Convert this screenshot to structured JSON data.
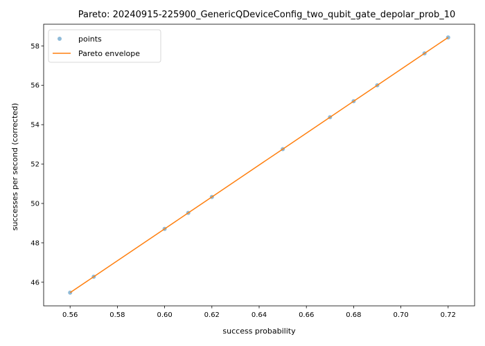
{
  "chart_data": {
    "type": "scatter",
    "title": "Pareto: 20240915-225900_GenericQDeviceConfig_two_qubit_gate_depolar_prob_10",
    "xlabel": "success probability",
    "ylabel": "successes per second (corrected)",
    "xlim": [
      0.5488,
      0.7312
    ],
    "ylim": [
      44.8,
      59.1
    ],
    "xticks": [
      0.56,
      0.58,
      0.6,
      0.62,
      0.64,
      0.66,
      0.68,
      0.7,
      0.72
    ],
    "xtick_labels": [
      "0.56",
      "0.58",
      "0.60",
      "0.62",
      "0.64",
      "0.66",
      "0.68",
      "0.70",
      "0.72"
    ],
    "yticks": [
      46,
      48,
      50,
      52,
      54,
      56,
      58
    ],
    "ytick_labels": [
      "46",
      "48",
      "50",
      "52",
      "54",
      "56",
      "58"
    ],
    "grid": false,
    "legend": {
      "placement": "top-left",
      "entries": [
        "points",
        "Pareto envelope"
      ]
    },
    "series": [
      {
        "name": "points",
        "kind": "scatter",
        "color": "#1f77b4",
        "x": [
          0.56,
          0.57,
          0.6,
          0.61,
          0.62,
          0.65,
          0.67,
          0.68,
          0.69,
          0.71,
          0.72
        ],
        "y": [
          45.47,
          46.28,
          48.71,
          49.52,
          50.33,
          52.76,
          54.38,
          55.19,
          56.0,
          57.62,
          58.43
        ]
      },
      {
        "name": "Pareto envelope",
        "kind": "line",
        "color": "#ff7f0e",
        "x": [
          0.56,
          0.57,
          0.6,
          0.61,
          0.62,
          0.65,
          0.67,
          0.68,
          0.69,
          0.71,
          0.72
        ],
        "y": [
          45.47,
          46.28,
          48.71,
          49.52,
          50.33,
          52.76,
          54.38,
          55.19,
          56.0,
          57.62,
          58.43
        ]
      }
    ]
  }
}
